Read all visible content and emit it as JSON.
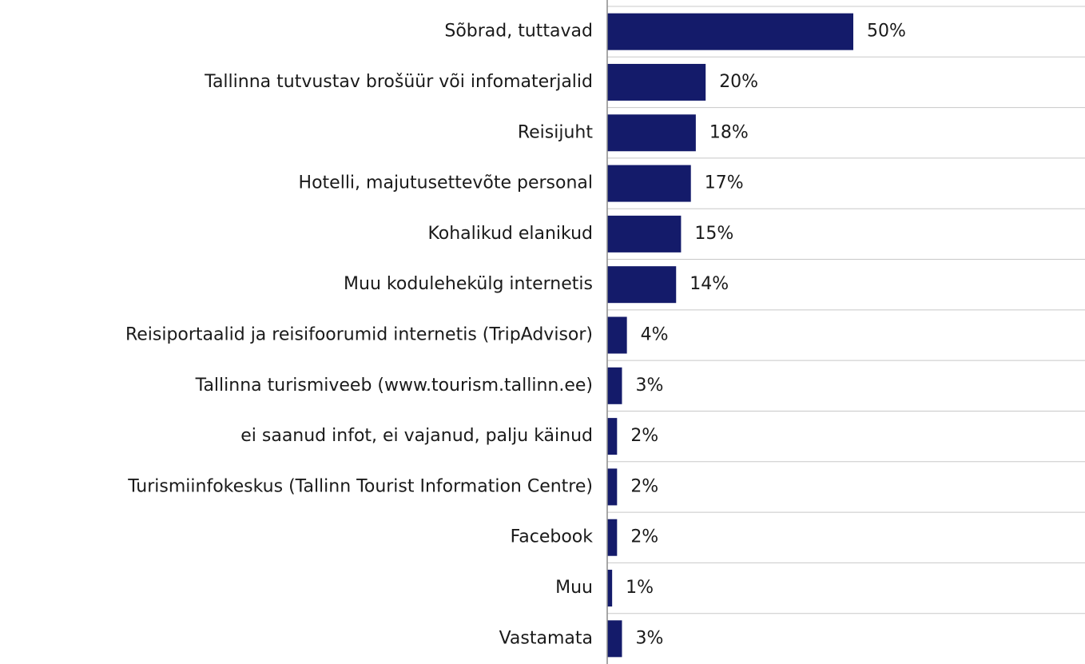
{
  "chart_data": {
    "type": "bar",
    "orientation": "horizontal",
    "color": "#141b6a",
    "categories": [
      "Sõbrad, tuttavad",
      "Tallinna tutvustav brošüür või infomaterjalid",
      "Reisijuht",
      "Hotelli, majutusettevõte personal",
      "Kohalikud elanikud",
      "Muu kodulehekülg internetis",
      "Reisiportaalid ja reisifoorumid internetis (TripAdvisor)",
      "Tallinna turismiveeb (www.tourism.tallinn.ee)",
      "ei saanud infot, ei vajanud, palju käinud",
      "Turismiinfokeskus (Tallinn Tourist Information Centre)",
      "Facebook",
      "Muu",
      "Vastamata"
    ],
    "values": [
      50,
      20,
      18,
      17,
      15,
      14,
      4,
      3,
      2,
      2,
      2,
      1,
      3
    ],
    "value_labels": [
      "50%",
      "20%",
      "18%",
      "17%",
      "15%",
      "14%",
      "4%",
      "3%",
      "2%",
      "2%",
      "2%",
      "1%",
      "3%"
    ]
  }
}
